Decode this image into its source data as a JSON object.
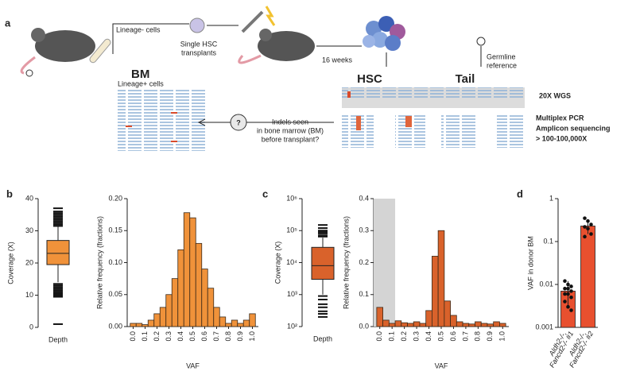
{
  "diagram": {
    "panel_label": "a",
    "lineage_minus": "Lineage- cells",
    "single_hsc": [
      "Single HSC",
      "transplants"
    ],
    "weeks": "16 weeks",
    "germline": [
      "Germline",
      "reference"
    ],
    "bm": "BM",
    "lineage_plus": "Lineage+ cells",
    "hsc": "HSC",
    "tail": "Tail",
    "wgs": "20X WGS",
    "amplicon": [
      "Multiplex PCR",
      "Amplicon sequencing",
      "> 100-100,000X"
    ],
    "question_mark": "?",
    "indels": [
      "Indels seen",
      "in bone marrow (BM)",
      "before transplant?"
    ]
  },
  "chart_data": [
    {
      "type": "box",
      "panel_label": "b",
      "y_label": "Coverage (X)",
      "categories": [
        "Depth"
      ],
      "color": "#f0923a",
      "ylim": [
        0,
        40
      ],
      "yticks": [
        0,
        10,
        20,
        30,
        40
      ],
      "stats": {
        "whisker_low": 14,
        "q1": 19.5,
        "median": 23,
        "q3": 27,
        "whisker_high": 31.5
      },
      "outliers": [
        31.5,
        32,
        32.5,
        33,
        33.5,
        34,
        34.5,
        35,
        35.5,
        36,
        37,
        13.5,
        13,
        12.5,
        12,
        11.5,
        11,
        10.5,
        10,
        9.5,
        1
      ]
    },
    {
      "type": "histogram",
      "x_label": "VAF",
      "y_label": "Relative frequency (fractions)",
      "color": "#f0923a",
      "bins": [
        -0.025,
        0.025,
        0.075,
        0.125,
        0.175,
        0.225,
        0.275,
        0.325,
        0.375,
        0.425,
        0.475,
        0.525,
        0.575,
        0.625,
        0.675,
        0.725,
        0.775,
        0.825,
        0.875,
        0.925,
        0.975,
        1.025
      ],
      "values": [
        0.005,
        0.005,
        0.003,
        0.01,
        0.02,
        0.03,
        0.05,
        0.075,
        0.12,
        0.178,
        0.17,
        0.13,
        0.09,
        0.06,
        0.03,
        0.015,
        0.005,
        0.01,
        0.005,
        0.01,
        0.02
      ],
      "xlim": [
        -0.05,
        1.05
      ],
      "xticks": [
        {
          "value": 0,
          "label": "0.0"
        },
        0.1,
        0.2,
        0.3,
        0.4,
        0.5,
        0.6,
        0.7,
        0.8,
        0.9,
        {
          "value": 1,
          "label": "1.0"
        }
      ],
      "ylim": [
        0,
        0.2
      ],
      "yticks": [
        {
          "value": 0,
          "label": "0.00"
        },
        0.05,
        {
          "value": 0.1,
          "label": "0.10"
        },
        0.15,
        {
          "value": 0.2,
          "label": "0.20"
        }
      ]
    },
    {
      "type": "box",
      "panel_label": "c",
      "y_label": "Coverage (X)",
      "categories": [
        "Depth"
      ],
      "color": "#d9622b",
      "log_scale": true,
      "ylim": [
        100,
        1000000
      ],
      "yticks": [
        {
          "value": 100,
          "label": "10²"
        },
        {
          "value": 1000,
          "label": "10³"
        },
        {
          "value": 10000,
          "label": "10⁴"
        },
        {
          "value": 100000,
          "label": "10⁵"
        },
        {
          "value": 1000000,
          "label": "10⁶"
        }
      ],
      "stats": {
        "whisker_low": 1000,
        "q1": 3000,
        "median": 8000,
        "q3": 30000,
        "whisker_high": 60000
      },
      "outliers": [
        65000,
        70000,
        80000,
        90000,
        100000,
        120000,
        150000,
        900,
        700,
        500,
        400,
        300,
        250,
        200
      ]
    },
    {
      "type": "histogram",
      "x_label": "VAF",
      "y_label": "Relative frequency (fractions)",
      "color": "#d9622b",
      "shade": [
        -0.05,
        0.125
      ],
      "bins": [
        -0.025,
        0.025,
        0.075,
        0.125,
        0.175,
        0.225,
        0.275,
        0.325,
        0.375,
        0.425,
        0.475,
        0.525,
        0.575,
        0.625,
        0.675,
        0.725,
        0.775,
        0.825,
        0.875,
        0.925,
        0.975,
        1.025
      ],
      "values": [
        0.06,
        0.02,
        0.01,
        0.018,
        0.012,
        0.01,
        0.015,
        0.01,
        0.05,
        0.22,
        0.3,
        0.08,
        0.035,
        0.015,
        0.01,
        0.008,
        0.015,
        0.01,
        0.008,
        0.015,
        0.01
      ],
      "xlim": [
        -0.05,
        1.05
      ],
      "xticks": [
        {
          "value": 0,
          "label": "0.0"
        },
        0.1,
        0.2,
        0.3,
        0.4,
        0.5,
        0.6,
        0.7,
        0.8,
        0.9,
        {
          "value": 1,
          "label": "1.0"
        }
      ],
      "ylim": [
        0,
        0.4
      ],
      "yticks": [
        {
          "value": 0,
          "label": "0.0"
        },
        0.1,
        0.2,
        0.3,
        0.4
      ]
    },
    {
      "type": "bar",
      "panel_label": "d",
      "y_label": "VAF in donor BM",
      "color": "#e8502f",
      "log_scale": true,
      "categories": [
        [
          "Aldh2-/-,",
          "Fancd2-/- #1"
        ],
        [
          "Aldh2-/-,",
          "Fancd2-/- #2"
        ]
      ],
      "values": [
        0.007,
        0.23
      ],
      "error_low": [
        0.003,
        0.15
      ],
      "error_high": [
        0.012,
        0.33
      ],
      "points": [
        [
          0.012,
          0.01,
          0.009,
          0.008,
          0.008,
          0.007,
          0.006,
          0.006,
          0.005,
          0.004,
          0.003,
          0.0025
        ],
        [
          0.35,
          0.3,
          0.25,
          0.22,
          0.2,
          0.15,
          0.13
        ]
      ],
      "ylim": [
        0.001,
        1
      ],
      "yticks": [
        0.001,
        0.01,
        0.1,
        1
      ]
    }
  ]
}
